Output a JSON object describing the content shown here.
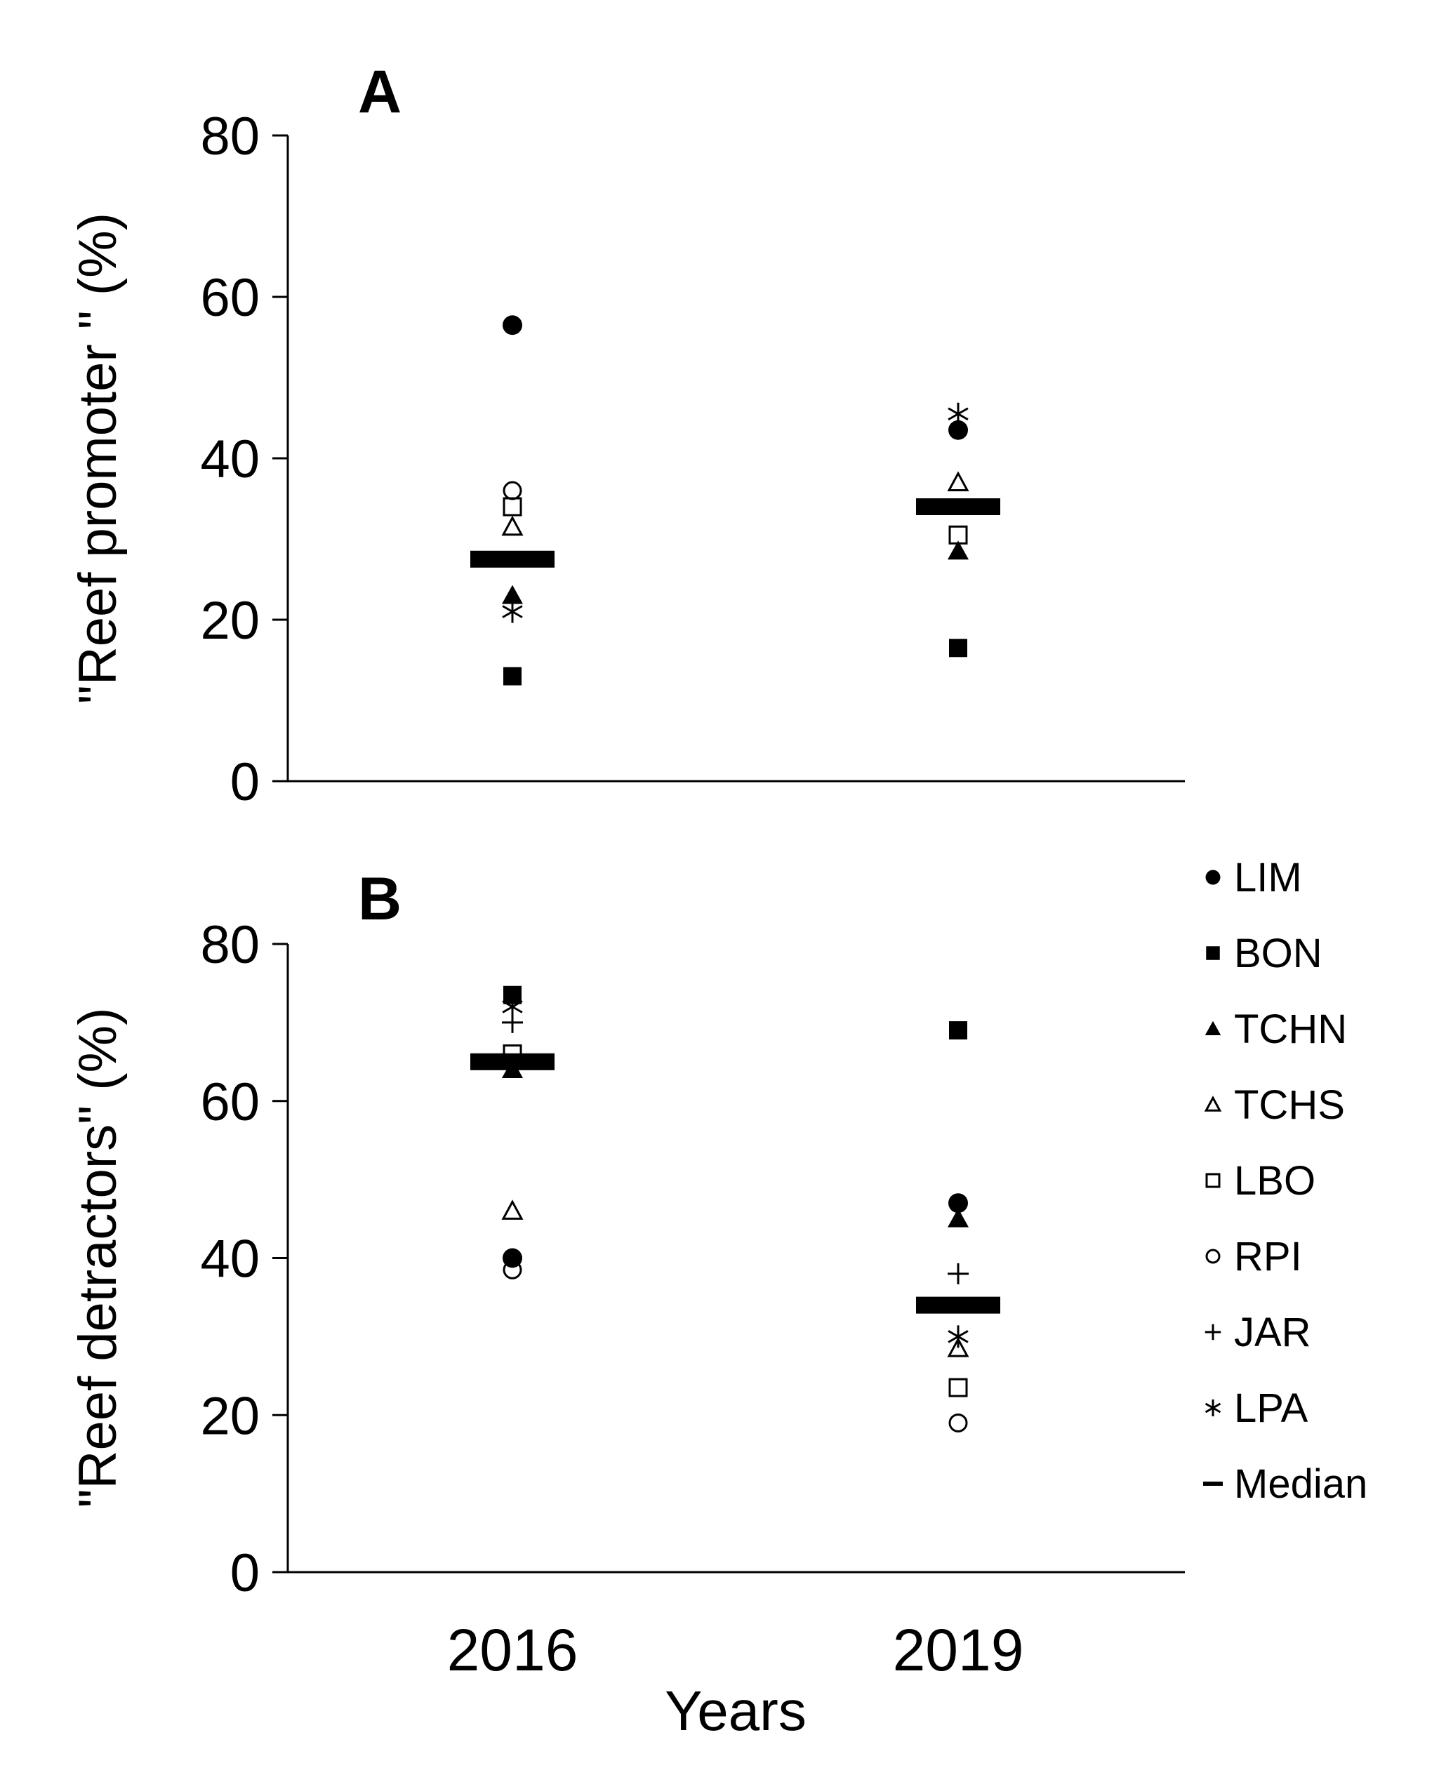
{
  "chart_data": [
    {
      "type": "scatter",
      "panel_label": "A",
      "ylabel": "\"Reef promoter \"  (%)",
      "xlabel": "",
      "categories": [
        "2016",
        "2019"
      ],
      "ylim": [
        0,
        80
      ],
      "yticks": [
        "0",
        "20",
        "40",
        "60",
        "80"
      ],
      "series": [
        {
          "name": "LIM",
          "marker": "filled-circle",
          "values": [
            56.5,
            43.5
          ]
        },
        {
          "name": "BON",
          "marker": "filled-square",
          "values": [
            13,
            16.5
          ]
        },
        {
          "name": "TCHN",
          "marker": "filled-triangle",
          "values": [
            23,
            28.5
          ]
        },
        {
          "name": "TCHS",
          "marker": "open-triangle",
          "values": [
            31.5,
            37
          ]
        },
        {
          "name": "LBO",
          "marker": "open-square",
          "values": [
            34,
            30.5
          ]
        },
        {
          "name": "RPI",
          "marker": "open-circle",
          "values": [
            36,
            null
          ]
        },
        {
          "name": "LPA",
          "marker": "asterisk",
          "values": [
            21,
            45.5
          ]
        },
        {
          "name": "Median",
          "marker": "bar",
          "values": [
            27.5,
            34
          ]
        }
      ]
    },
    {
      "type": "scatter",
      "panel_label": "B",
      "ylabel": "\"Reef detractors\" (%)",
      "xlabel": "Years",
      "categories": [
        "2016",
        "2019"
      ],
      "ylim": [
        0,
        80
      ],
      "yticks": [
        "0",
        "20",
        "40",
        "60",
        "80"
      ],
      "series": [
        {
          "name": "LIM",
          "marker": "filled-circle",
          "values": [
            40,
            47
          ]
        },
        {
          "name": "BON",
          "marker": "filled-square",
          "values": [
            73.5,
            69
          ]
        },
        {
          "name": "TCHN",
          "marker": "filled-triangle",
          "values": [
            64,
            45
          ]
        },
        {
          "name": "TCHS",
          "marker": "open-triangle",
          "values": [
            46,
            28.5
          ]
        },
        {
          "name": "LBO",
          "marker": "open-square",
          "values": [
            66,
            23.5
          ]
        },
        {
          "name": "RPI",
          "marker": "open-circle",
          "values": [
            38.5,
            19
          ]
        },
        {
          "name": "JAR",
          "marker": "plus",
          "values": [
            70,
            38
          ]
        },
        {
          "name": "LPA",
          "marker": "asterisk",
          "values": [
            72,
            30
          ]
        },
        {
          "name": "Median",
          "marker": "bar",
          "values": [
            65,
            34
          ]
        }
      ]
    }
  ],
  "legend": {
    "placement": "right of panel B",
    "items": [
      {
        "name": "LIM",
        "marker": "filled-circle"
      },
      {
        "name": "BON",
        "marker": "filled-square"
      },
      {
        "name": "TCHN",
        "marker": "filled-triangle"
      },
      {
        "name": "TCHS",
        "marker": "open-triangle"
      },
      {
        "name": "LBO",
        "marker": "open-square"
      },
      {
        "name": "RPI",
        "marker": "open-circle"
      },
      {
        "name": "JAR",
        "marker": "plus"
      },
      {
        "name": "LPA",
        "marker": "asterisk"
      },
      {
        "name": "Median",
        "marker": "bar"
      }
    ]
  },
  "colors": {
    "ink": "#000000",
    "background": "#ffffff"
  }
}
